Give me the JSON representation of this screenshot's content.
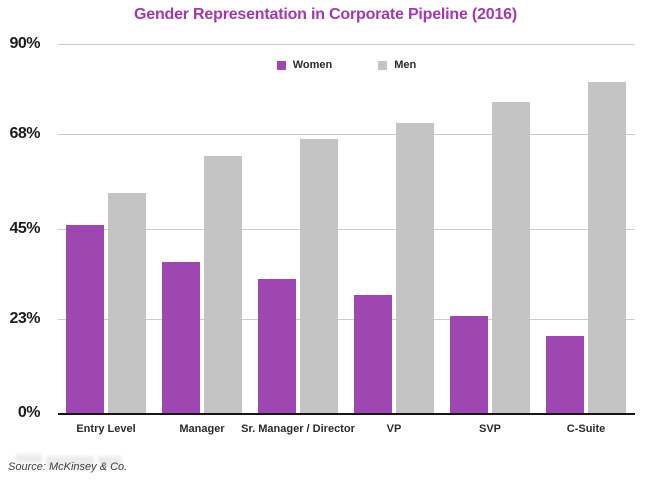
{
  "source_note": "Source: McKinsey & Co.",
  "colors": {
    "title": "#A338B0",
    "women": "#9E47B0",
    "men": "#C4C4C4",
    "gridline": "#CCCCCC",
    "axis_line": "#161616",
    "background": "#FFFFFF"
  },
  "chart_data": {
    "type": "bar",
    "title": "Gender Representation in Corporate Pipeline (2016)",
    "categories": [
      "Entry Level",
      "Manager",
      "Sr. Manager / Director",
      "VP",
      "SVP",
      "C-Suite"
    ],
    "series": [
      {
        "name": "Women",
        "color": "#9E47B0",
        "values": [
          46,
          37,
          33,
          29,
          24,
          19
        ]
      },
      {
        "name": "Men",
        "color": "#C4C4C4",
        "values": [
          54,
          63,
          67,
          71,
          76,
          81
        ]
      }
    ],
    "xlabel": "",
    "ylabel": "",
    "ylim": [
      0,
      90
    ],
    "yticks": [
      {
        "label": "90%",
        "value": 90
      },
      {
        "label": "68%",
        "value": 68
      },
      {
        "label": "45%",
        "value": 45
      },
      {
        "label": "23%",
        "value": 23
      },
      {
        "label": "0%",
        "value": 0
      }
    ],
    "grid": true,
    "legend_position": "top-center"
  }
}
